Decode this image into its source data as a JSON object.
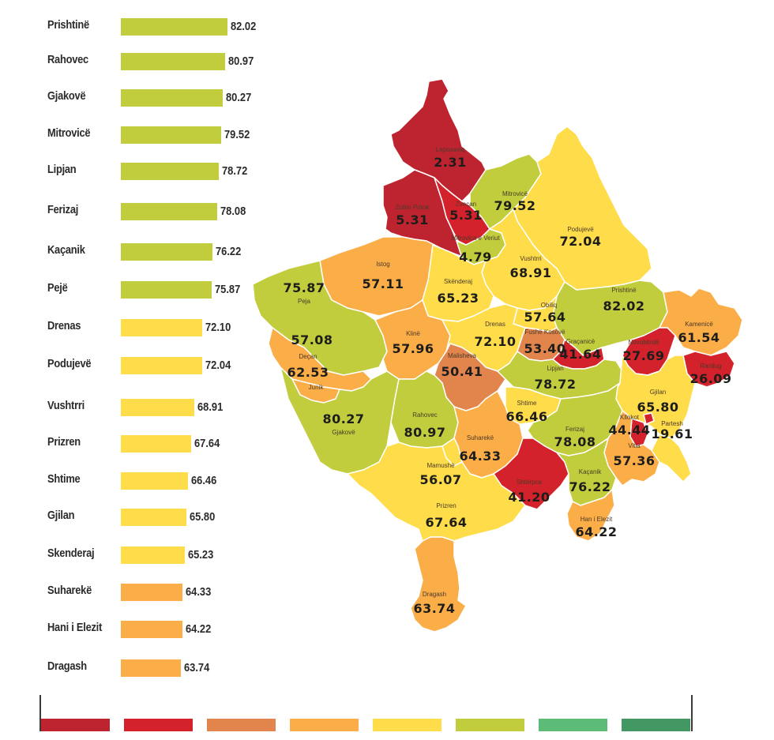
{
  "chart_data": [
    {
      "type": "bar",
      "orientation": "horizontal",
      "title": "",
      "xlabel": "",
      "ylabel": "",
      "categories": [
        "Prishtinë",
        "Rahovec",
        "Gjakovë",
        "Mitrovicë",
        "Lipjan",
        "Ferizaj",
        "Kaçanik",
        "Pejë",
        "Drenas",
        "Podujevë",
        "Vushtrri",
        "Prizren",
        "Shtime",
        "Gjilan",
        "Skenderaj",
        "Suharekë",
        "Hani i Elezit",
        "Dragash"
      ],
      "values": [
        82.02,
        80.97,
        80.27,
        79.52,
        78.72,
        78.08,
        76.22,
        75.87,
        72.1,
        72.04,
        68.91,
        67.64,
        66.46,
        65.8,
        65.23,
        64.33,
        64.22,
        63.74
      ],
      "value_labels": [
        "82.02",
        "80.97",
        "80.27",
        "79.52",
        "78.72",
        "78.08",
        "76.22",
        "75.87",
        "72.10",
        "72.04",
        "68.91",
        "67.64",
        "66.46",
        "65.80",
        "65.23",
        "64.33",
        "64.22",
        "63.74"
      ],
      "bar_colors": [
        "#c1cd3d",
        "#c1cd3d",
        "#c1cd3d",
        "#c1cd3d",
        "#c1cd3d",
        "#c1cd3d",
        "#c1cd3d",
        "#c1cd3d",
        "#fedc4a",
        "#fedc4a",
        "#fedc4a",
        "#fedc4a",
        "#fedc4a",
        "#fedc4a",
        "#fedc4a",
        "#fbad47",
        "#fbad47",
        "#fbad47"
      ],
      "grid": false,
      "legend": false
    },
    {
      "type": "choropleth",
      "title": "",
      "regions": [
        {
          "name": "Leposaviq",
          "value": 2.31,
          "label": "2.31",
          "color": "#be2430"
        },
        {
          "name": "Zubin Potok",
          "value": 5.31,
          "label": "5.31",
          "color": "#be2430"
        },
        {
          "name": "Zveçan",
          "value": 5.31,
          "label": "5.31",
          "color": "#d3222b"
        },
        {
          "name": "Mitrovicë",
          "value": 79.52,
          "label": "79.52",
          "color": "#c1cd3d"
        },
        {
          "name": "Mitrovica e Veriut",
          "value": 4.79,
          "label": "4.79",
          "color": "#c1cd3d"
        },
        {
          "name": "Podujevë",
          "value": 72.04,
          "label": "72.04",
          "color": "#fedc4a"
        },
        {
          "name": "Istog",
          "value": 57.11,
          "label": "57.11",
          "color": "#fbad47"
        },
        {
          "name": "Vushtrri",
          "value": 68.91,
          "label": "68.91",
          "color": "#fedc4a"
        },
        {
          "name": "Peja",
          "value": 75.87,
          "label": "75.87",
          "color": "#c1cd3d"
        },
        {
          "name": "Skënderaj",
          "value": 65.23,
          "label": "65.23",
          "color": "#fedc4a"
        },
        {
          "name": "Obiliq",
          "value": 57.64,
          "label": "57.64",
          "color": "#fedc4a"
        },
        {
          "name": "Prishtinë",
          "value": 82.02,
          "label": "82.02",
          "color": "#c1cd3d"
        },
        {
          "name": "Kamenicë",
          "value": 61.54,
          "label": "61.54",
          "color": "#fbad47"
        },
        {
          "name": "Klinë",
          "value": 57.96,
          "label": "57.96",
          "color": "#fbad47"
        },
        {
          "name": "Drenas",
          "value": 72.1,
          "label": "72.10",
          "color": "#fedc4a"
        },
        {
          "name": "Fushë Kosovë",
          "value": 53.4,
          "label": "53.40",
          "color": "#e2854c"
        },
        {
          "name": "Graçanicë",
          "value": 41.64,
          "label": "41.64",
          "color": "#d3222b"
        },
        {
          "name": "Novobërdë",
          "value": 27.69,
          "label": "27.69",
          "color": "#d3222b"
        },
        {
          "name": "Deçan",
          "value": 62.53,
          "label": "62.53",
          "color": "#fbad47"
        },
        {
          "name": "Junik",
          "value": 57.08,
          "label": "57.08",
          "color": "#fbad47"
        },
        {
          "name": "Ranilug",
          "value": 26.09,
          "label": "26.09",
          "color": "#d3222b"
        },
        {
          "name": "Malisheva",
          "value": 50.41,
          "label": "50.41",
          "color": "#e2854c"
        },
        {
          "name": "Lipjan",
          "value": 78.72,
          "label": "78.72",
          "color": "#c1cd3d"
        },
        {
          "name": "Gjilan",
          "value": 65.8,
          "label": "65.80",
          "color": "#fedc4a"
        },
        {
          "name": "Gjakovë",
          "value": 80.27,
          "label": "80.27",
          "color": "#c1cd3d"
        },
        {
          "name": "Rahovec",
          "value": 80.97,
          "label": "80.97",
          "color": "#c1cd3d"
        },
        {
          "name": "Shtime",
          "value": 66.46,
          "label": "66.46",
          "color": "#fedc4a"
        },
        {
          "name": "Kllokot",
          "value": 44.44,
          "label": "44.44",
          "color": "#d3222b"
        },
        {
          "name": "Partesh",
          "value": 19.61,
          "label": "19.61",
          "color": "#d3222b"
        },
        {
          "name": "Ferizaj",
          "value": 78.08,
          "label": "78.08",
          "color": "#c1cd3d"
        },
        {
          "name": "Suharekë",
          "value": 64.33,
          "label": "64.33",
          "color": "#fbad47"
        },
        {
          "name": "Vitia",
          "value": 57.36,
          "label": "57.36",
          "color": "#fbad47"
        },
        {
          "name": "Mamushë",
          "value": 56.07,
          "label": "56.07",
          "color": "#fedc4a"
        },
        {
          "name": "Shtërpca",
          "value": 41.2,
          "label": "41.20",
          "color": "#d3222b"
        },
        {
          "name": "Kaçanik",
          "value": 76.22,
          "label": "76.22",
          "color": "#c1cd3d"
        },
        {
          "name": "Prizren",
          "value": 67.64,
          "label": "67.64",
          "color": "#fedc4a"
        },
        {
          "name": "Han i Elezit",
          "value": 64.22,
          "label": "64.22",
          "color": "#fbad47"
        },
        {
          "name": "Dragash",
          "value": 63.74,
          "label": "63.74",
          "color": "#fbad47"
        }
      ],
      "legend": {
        "position": "bottom",
        "colors": [
          "#be2430",
          "#d3222b",
          "#e2854c",
          "#fbad47",
          "#fedc4a",
          "#c1cd3d",
          "#5bbb77",
          "#439763"
        ],
        "labels": []
      }
    }
  ]
}
